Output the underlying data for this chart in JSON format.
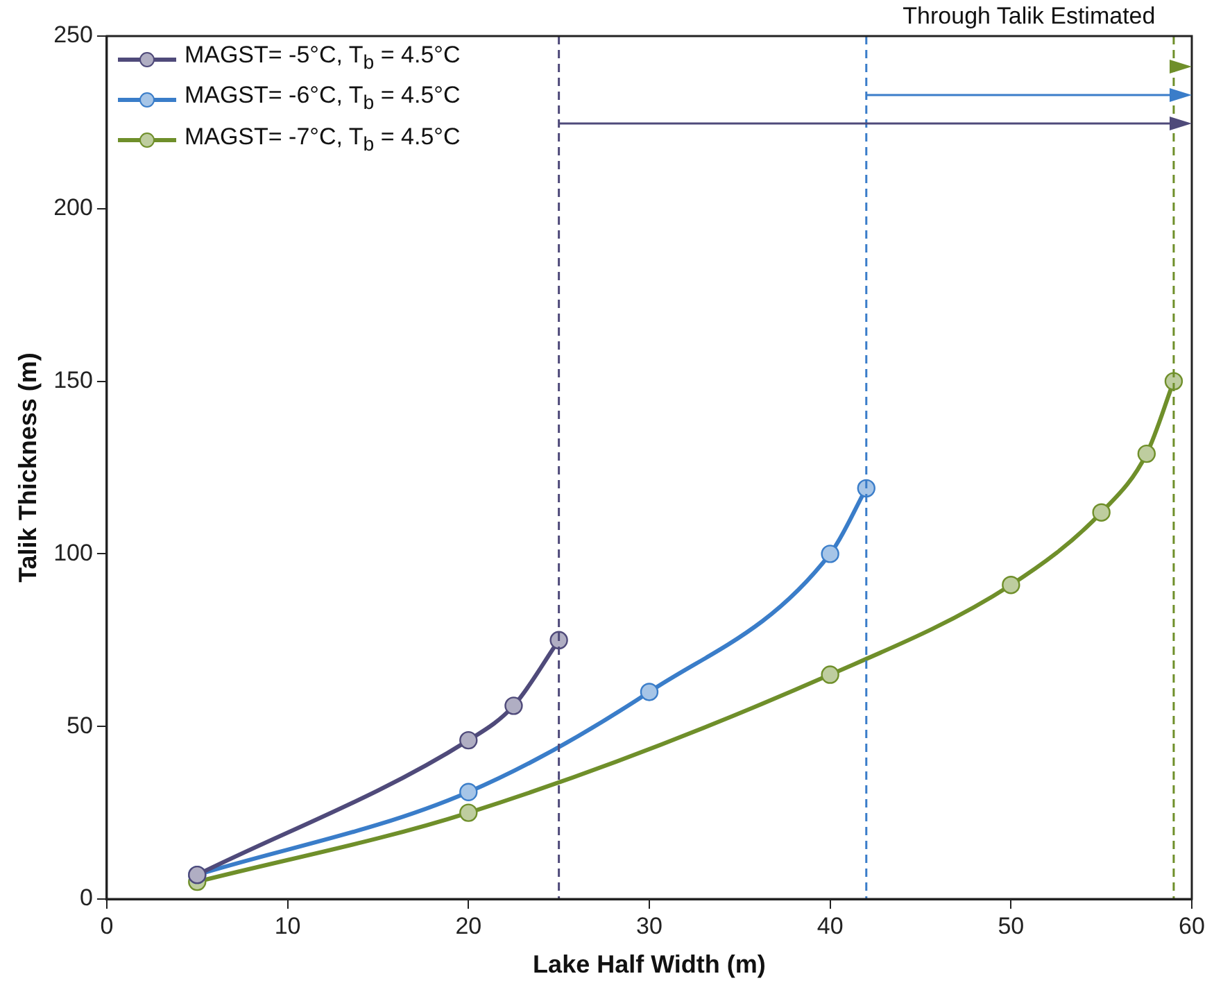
{
  "chart_data": {
    "type": "line",
    "xlabel": "Lake Half Width (m)",
    "ylabel": "Talik Thickness (m)",
    "xlim": [
      0,
      60
    ],
    "xticks": [
      0,
      10,
      20,
      30,
      40,
      50,
      60
    ],
    "ylim": [
      0,
      250
    ],
    "yticks": [
      0,
      50,
      100,
      150,
      200,
      250
    ],
    "grid": false,
    "legend": "top left",
    "marker": "circle",
    "line_style": "solid",
    "annotations": [
      "Through Talik Estimated"
    ],
    "ref_lines": [
      {
        "axis": "x",
        "value": 25,
        "color": "#4f4a7a",
        "line_style": "dashed"
      },
      {
        "axis": "x",
        "value": 42,
        "color": "#3a7dc9",
        "line_style": "dashed"
      },
      {
        "axis": "x",
        "value": 59,
        "color": "#6f8f2a",
        "line_style": "dashed"
      }
    ],
    "series": [
      {
        "name": "MAGST= -5°C, T$_{b}$ = 4.5°C",
        "color": "#4f4a7a",
        "x": [
          5,
          20,
          22.5,
          25
        ],
        "values": [
          7,
          46,
          56,
          75
        ]
      },
      {
        "name": "MAGST= -6°C, T$_{b}$ = 4.5°C",
        "color": "#3a7dc9",
        "x": [
          5,
          20,
          30,
          40,
          42
        ],
        "values": [
          7,
          31,
          60,
          100,
          119
        ]
      },
      {
        "name": "MAGST= -7°C, T$_{b}$ = 4.5°C",
        "color": "#6f8f2a",
        "x": [
          5,
          20,
          40,
          50,
          55,
          57.5,
          59
        ],
        "values": [
          5,
          25,
          65,
          91,
          112,
          129,
          150
        ]
      }
    ]
  }
}
